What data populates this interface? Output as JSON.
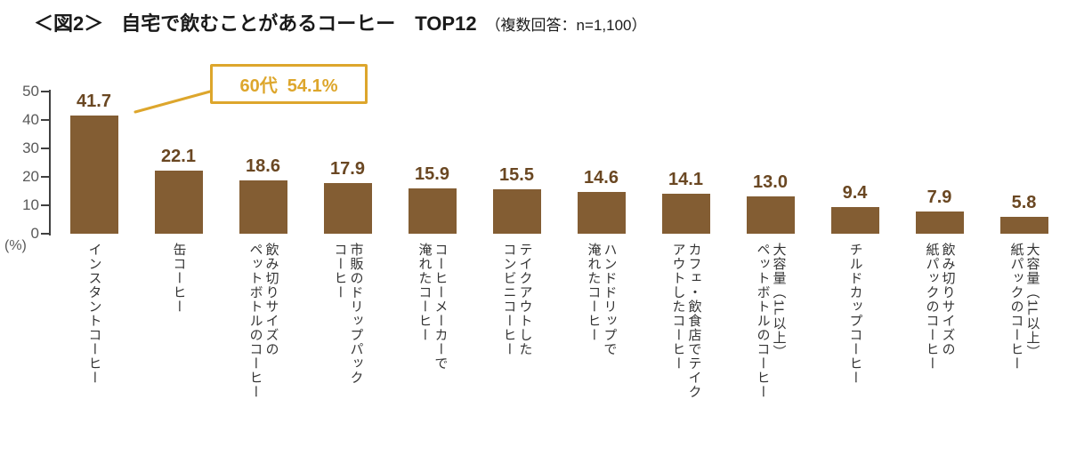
{
  "header": {
    "figure_label": "＜図2＞",
    "title": "自宅で飲むことがあるコーヒー　TOP12",
    "note": "（複数回答：n=1,100）"
  },
  "callout": {
    "text": "60代  54.1%"
  },
  "chart_data": {
    "type": "bar",
    "title": "自宅で飲むことがあるコーヒー TOP12",
    "subtitle": "複数回答：n=1,100",
    "unit_label": "(%)",
    "xlabel": "",
    "ylabel": "%",
    "ylim": [
      0,
      50
    ],
    "yticks": [
      0,
      10,
      20,
      30,
      40,
      50
    ],
    "grid": false,
    "legend": "none",
    "bar_color": "#835d33",
    "value_label_color": "#6a4722",
    "axis_label_color": "#595959",
    "annotation": {
      "text": "60代  54.1%",
      "target_category": "インスタントコーヒー",
      "color": "#dda62c"
    },
    "categories": [
      "インスタントコーヒー",
      "缶コーヒー",
      "飲み切りサイズの\nペットボトルのコーヒー",
      "市販のドリップパック\nコーヒー",
      "コーヒーメーカーで\n淹れたコーヒー",
      "テイクアウトした\nコンビニコーヒー",
      "ハンドドリップで\n淹れたコーヒー",
      "カフェ・飲食店でテイク\nアウトしたコーヒー",
      "大容量（1L以上）\nペットボトルのコーヒー",
      "チルドカップコーヒー",
      "飲み切りサイズの\n紙パックのコーヒー",
      "大容量（1L以上）\n紙パックのコーヒー"
    ],
    "values": [
      41.7,
      22.1,
      18.6,
      17.9,
      15.9,
      15.5,
      14.6,
      14.1,
      13.0,
      9.4,
      7.9,
      5.8
    ]
  }
}
